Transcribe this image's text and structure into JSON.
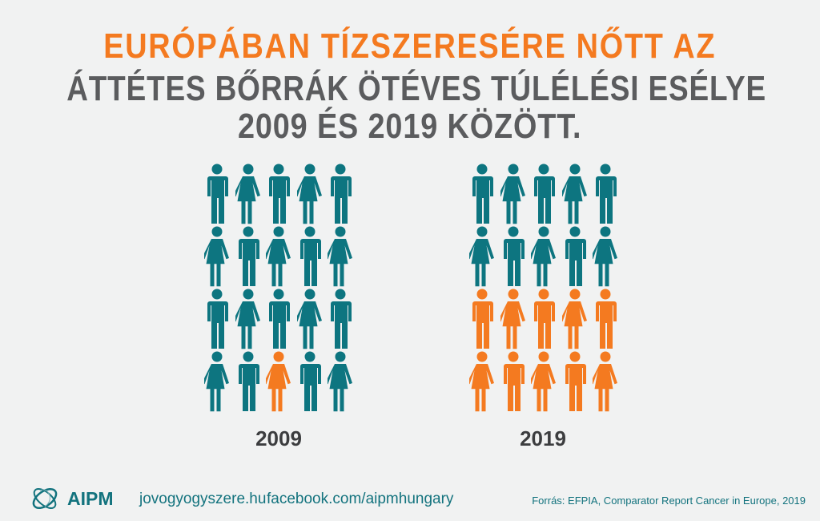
{
  "title": {
    "line1": "EURÓPÁBAN TÍZSZERESÉRE NŐTT AZ",
    "line2": "ÁTTÉTES BŐRRÁK ÖTÉVES TÚLÉLÉSI ESÉLYE",
    "line3": "2009 ÉS 2019 KÖZÖTT."
  },
  "colors": {
    "highlight": "#f47a20",
    "base": "#0d7580",
    "background": "#f1f2f2"
  },
  "pictograms": [
    {
      "year": "2009",
      "total": 20,
      "highlighted_indices": [
        17
      ]
    },
    {
      "year": "2019",
      "total": 20,
      "highlighted_indices": [
        10,
        11,
        12,
        13,
        14,
        15,
        16,
        17,
        18,
        19
      ]
    }
  ],
  "figure_pattern": [
    "man",
    "woman",
    "man",
    "woman",
    "man",
    "woman",
    "man",
    "woman",
    "man",
    "woman",
    "man",
    "woman",
    "man",
    "woman",
    "man",
    "woman",
    "man",
    "woman",
    "man",
    "woman"
  ],
  "footer": {
    "logo_text": "AIPM",
    "website": "jovogyogyszere.hu",
    "facebook": "facebook.com/aipmhungary",
    "source": "Forrás: EFPIA, Comparator Report Cancer in Europe, 2019"
  }
}
